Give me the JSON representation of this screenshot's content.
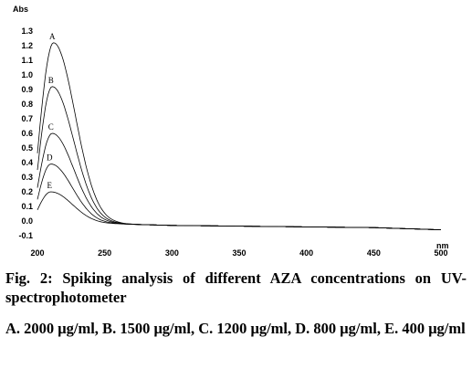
{
  "chart_data": {
    "type": "line",
    "ylabel": "Abs",
    "xlabel": "nm",
    "xlim": [
      200,
      500
    ],
    "ylim": [
      -0.1,
      1.3
    ],
    "x_ticks": [
      "200",
      "250",
      "300",
      "350",
      "400",
      "450",
      "500"
    ],
    "y_ticks": [
      "-0.1",
      "0.0",
      "0.1",
      "0.2",
      "0.3",
      "0.4",
      "0.5",
      "0.6",
      "0.7",
      "0.8",
      "0.9",
      "1.0",
      "1.1",
      "1.2",
      "1.3"
    ],
    "series": [
      {
        "name": "A",
        "peak_x": 212,
        "peak_y": 1.22
      },
      {
        "name": "B",
        "peak_x": 211,
        "peak_y": 0.92
      },
      {
        "name": "C",
        "peak_x": 211,
        "peak_y": 0.6
      },
      {
        "name": "D",
        "peak_x": 210,
        "peak_y": 0.39
      },
      {
        "name": "E",
        "peak_x": 210,
        "peak_y": 0.2
      }
    ],
    "baseline": [
      [
        260,
        -0.02
      ],
      [
        300,
        -0.03
      ],
      [
        350,
        -0.035
      ],
      [
        400,
        -0.04
      ],
      [
        450,
        -0.045
      ],
      [
        500,
        -0.06
      ]
    ]
  },
  "caption": {
    "title": "Fig. 2: Spiking analysis of different AZA concentrations on UV-spectrophotometer",
    "legend": "A. 2000 μg/ml, B. 1500 μg/ml, C. 1200 μg/ml, D. 800 μg/ml, E. 400 μg/ml"
  }
}
